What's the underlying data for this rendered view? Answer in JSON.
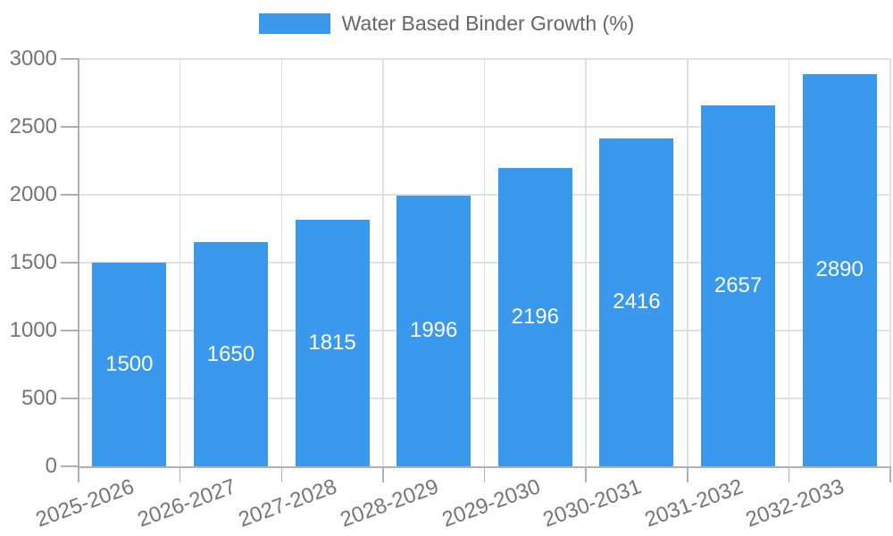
{
  "legend": {
    "label": "Water Based Binder Growth (%)",
    "swatch_color": "#3a99ec"
  },
  "chart_data": {
    "type": "bar",
    "title": "Water Based Binder Growth (%)",
    "categories": [
      "2025-2026",
      "2026-2027",
      "2027-2028",
      "2028-2029",
      "2029-2030",
      "2030-2031",
      "2031-2032",
      "2032-2033"
    ],
    "series": [
      {
        "name": "Water Based Binder Growth (%)",
        "values": [
          1500,
          1650,
          1815,
          1996,
          2196,
          2416,
          2657,
          2890
        ]
      }
    ],
    "values": [
      1500,
      1650,
      1815,
      1996,
      2196,
      2416,
      2657,
      2890
    ],
    "bar_value_labels": [
      "1500",
      "1650",
      "1815",
      "1996",
      "2196",
      "2416",
      "2657",
      "2890"
    ],
    "xlabel": "",
    "ylabel": "",
    "ylim": [
      0,
      3000
    ],
    "yticks": [
      0,
      500,
      1000,
      1500,
      2000,
      2500,
      3000
    ],
    "ytick_labels": [
      "0",
      "500",
      "1000",
      "1500",
      "2000",
      "2500",
      "3000"
    ],
    "grid": true,
    "legend_position": "top",
    "x_label_rotation_deg": -20,
    "colors": {
      "bar": "#3a99ec",
      "bar_label": "#ffffff",
      "grid": "#e0e0e0",
      "axis": "#b0b0b0",
      "tick_label": "#757575",
      "legend_text": "#666666"
    }
  }
}
